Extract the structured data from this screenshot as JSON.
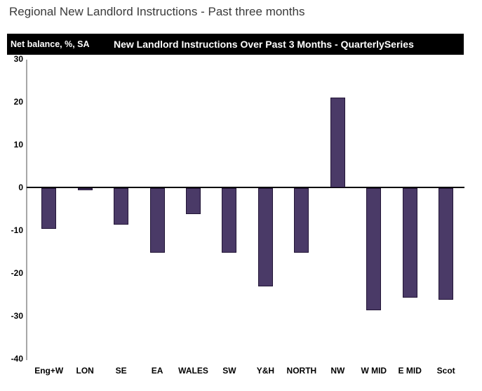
{
  "page": {
    "title": "Regional New Landlord Instructions - Past three months"
  },
  "header": {
    "left_label": "Net balance, %, SA",
    "title": "New Landlord Instructions Over Past 3 Months - QuarterlySeries",
    "background": "#000000",
    "text_color": "#ffffff"
  },
  "chart_data": {
    "type": "bar",
    "title": "New Landlord Instructions Over Past 3 Months - QuarterlySeries",
    "units_note": "Net balance, %, SA",
    "categories": [
      "Eng+W",
      "LON",
      "SE",
      "EA",
      "WALES",
      "SW",
      "Y&H",
      "NORTH",
      "NW",
      "W MID",
      "E MID",
      "Scot"
    ],
    "values": [
      -9.5,
      -0.5,
      -8.5,
      -15,
      -6,
      -15,
      -23,
      -15,
      21,
      -28.5,
      -25.5,
      -26
    ],
    "yticks": [
      30,
      20,
      10,
      0,
      -10,
      -20,
      -30,
      -40
    ],
    "ylim": [
      -40,
      30
    ],
    "xlabel": "",
    "ylabel": "",
    "grid": false,
    "legend": "none",
    "bar_color": "#4a3a67",
    "bar_border_color": "#221536",
    "axis_color": "#a8a8a8",
    "zero_line_color": "#000000"
  }
}
